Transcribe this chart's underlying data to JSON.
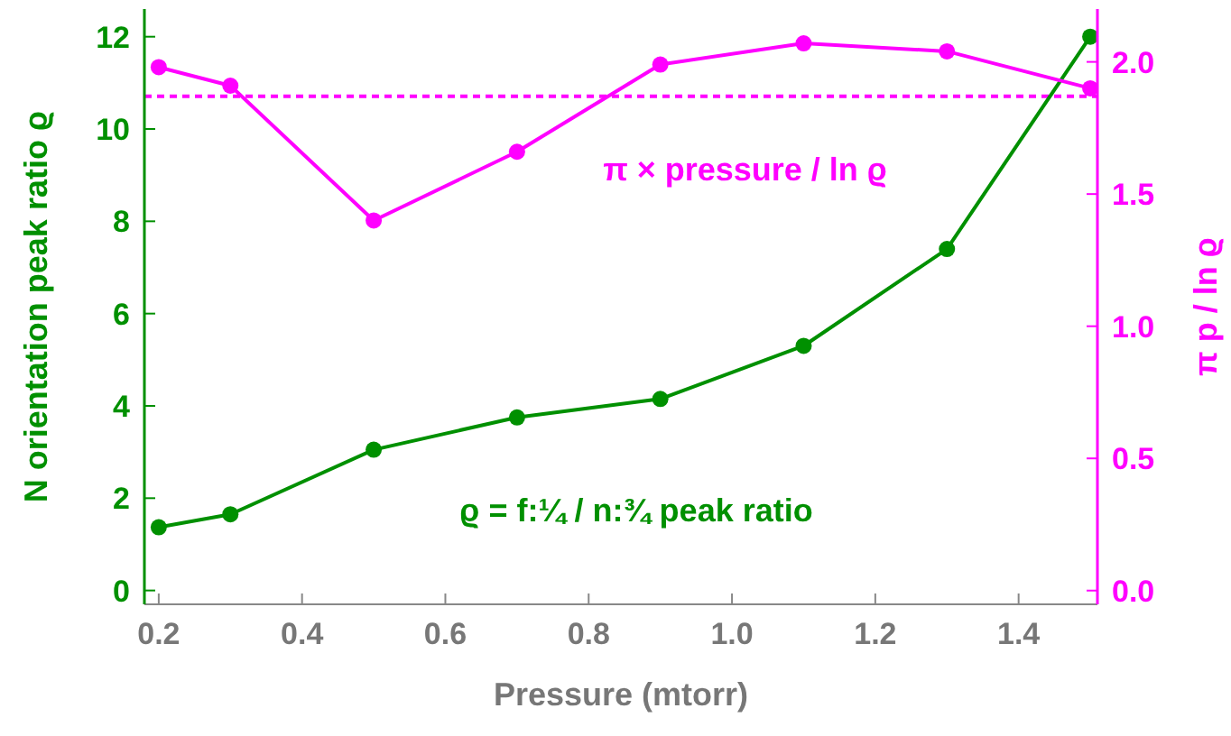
{
  "chart_data": {
    "type": "line",
    "xlabel": "Pressure (mtorr)",
    "ylabel": "N orientation peak ratio ϱ",
    "y2label": "π p / ln ϱ",
    "x": [
      0.2,
      0.3,
      0.5,
      0.7,
      0.9,
      1.1,
      1.3,
      1.5
    ],
    "series": [
      {
        "color": "#009000",
        "values": [
          1.37,
          1.65,
          3.05,
          3.75,
          4.15,
          5.3,
          7.4,
          12.0
        ]
      },
      {
        "color": "#ff00ff",
        "axis": "y2",
        "values": [
          1.98,
          1.91,
          1.4,
          1.66,
          1.99,
          2.07,
          2.04,
          1.9
        ]
      }
    ],
    "xlim": [
      0.18,
      1.51
    ],
    "xticks": [
      0.2,
      0.4,
      0.6,
      0.8,
      {
        "value": 1.0,
        "label": "1.0"
      },
      1.2,
      1.4
    ],
    "ylim": [
      -0.3,
      12.6
    ],
    "yticks": [
      0,
      2,
      4,
      6,
      8,
      10,
      12
    ],
    "y2lim": [
      -0.052,
      2.2
    ],
    "y2ticks": [
      {
        "value": 0,
        "label": "0.0"
      },
      0.5,
      {
        "value": 1,
        "label": "1.0"
      },
      1.5,
      {
        "value": 2,
        "label": "2.0"
      }
    ],
    "ref_lines": [
      {
        "axis": "y2",
        "value": 1.87,
        "color": "#ff00ff",
        "line_style": "dashed"
      }
    ],
    "annotations": [
      "π × pressure / ln ϱ",
      "ϱ = f:¼ / n:¾  peak ratio"
    ],
    "marker": "circle",
    "line_style": "solid"
  }
}
